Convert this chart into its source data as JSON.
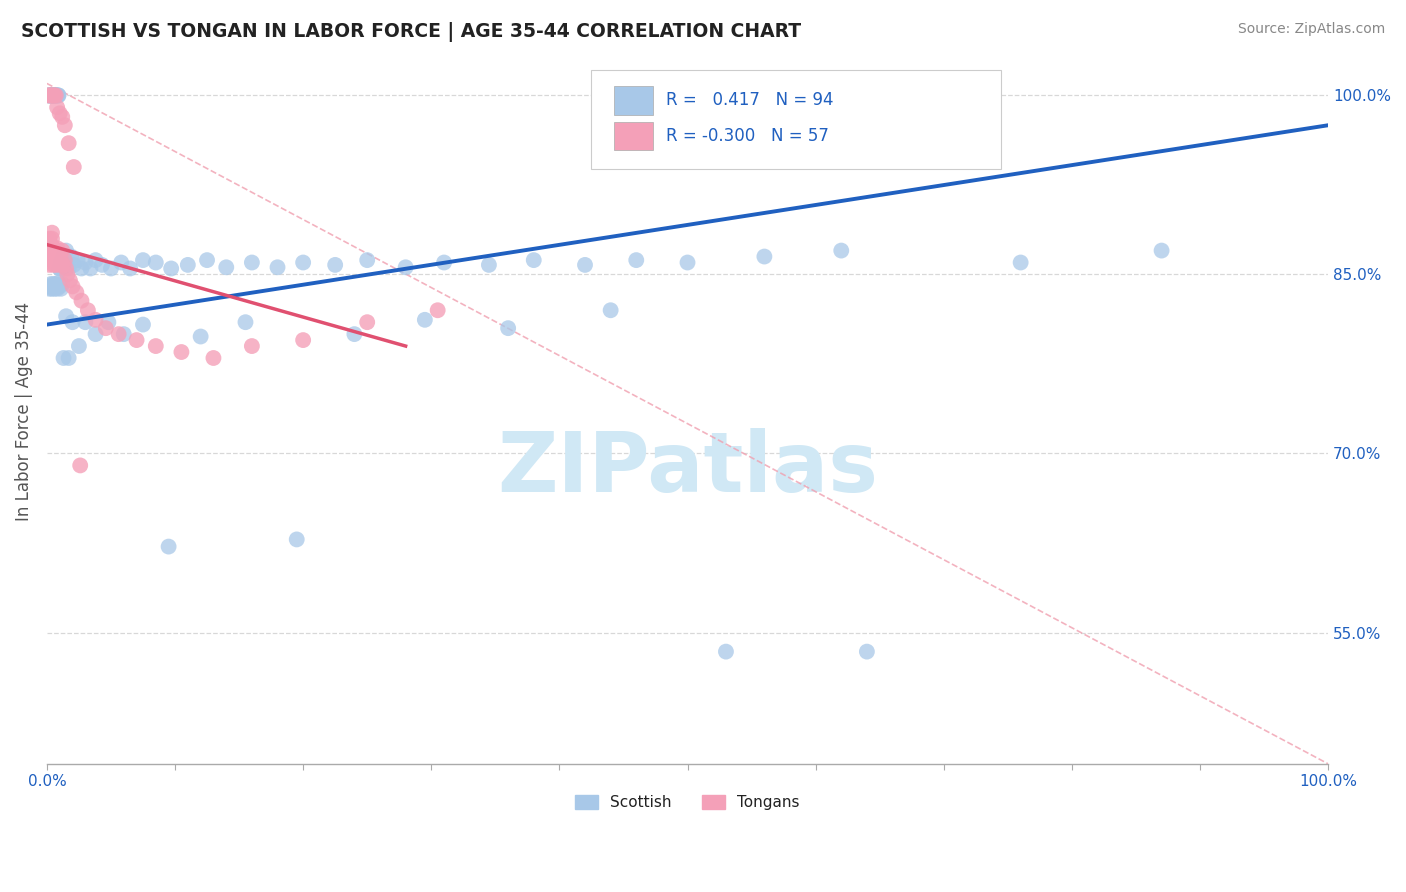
{
  "title": "SCOTTISH VS TONGAN IN LABOR FORCE | AGE 35-44 CORRELATION CHART",
  "source": "Source: ZipAtlas.com",
  "ylabel": "In Labor Force | Age 35-44",
  "xlim": [
    0.0,
    1.0
  ],
  "ylim": [
    0.44,
    1.03
  ],
  "yticks": [
    0.55,
    0.7,
    0.85,
    1.0
  ],
  "ytick_labels": [
    "55.0%",
    "70.0%",
    "85.0%",
    "100.0%"
  ],
  "blue_R": "0.417",
  "blue_N": "94",
  "pink_R": "-0.300",
  "pink_N": "57",
  "blue_color": "#a8c8e8",
  "pink_color": "#f4a0b8",
  "blue_line_color": "#2060c0",
  "pink_line_color": "#e05070",
  "dash_line_color": "#f0a0b0",
  "text_color": "#2060c0",
  "background_color": "#ffffff",
  "grid_color": "#d8d8d8",
  "title_color": "#222222",
  "source_color": "#888888",
  "ylabel_color": "#555555",
  "watermark_color": "#d0e8f5",
  "blue_line_x0": 0.0,
  "blue_line_y0": 0.808,
  "blue_line_x1": 1.0,
  "blue_line_y1": 0.975,
  "pink_line_x0": 0.0,
  "pink_line_y0": 0.875,
  "pink_line_x1": 0.28,
  "pink_line_y1": 0.79,
  "dash_line_x0": 0.0,
  "dash_line_y0": 1.01,
  "dash_line_x1": 1.0,
  "dash_line_y1": 0.44
}
